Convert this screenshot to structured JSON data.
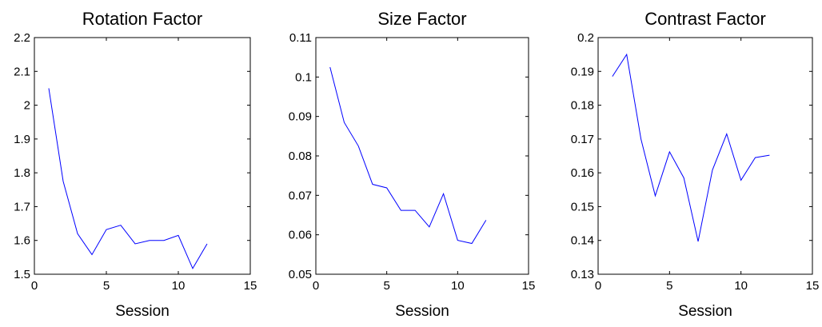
{
  "chart_data": [
    {
      "type": "line",
      "title": "Rotation Factor",
      "xlabel": "Session",
      "ylabel": "",
      "xlim": [
        0,
        15
      ],
      "ylim": [
        1.5,
        2.2
      ],
      "xticks": [
        0,
        5,
        10,
        15
      ],
      "xtick_labels": [
        "0",
        "5",
        "10",
        "15"
      ],
      "yticks": [
        1.5,
        1.6,
        1.7,
        1.8,
        1.9,
        2.0,
        2.1,
        2.2
      ],
      "ytick_labels": [
        "1.5",
        "1.6",
        "1.7",
        "1.8",
        "1.9",
        "2",
        "2.1",
        "2.2"
      ],
      "grid": false,
      "color": "#0000ff",
      "x": [
        1,
        2,
        3,
        4,
        5,
        6,
        7,
        8,
        9,
        10,
        11,
        12
      ],
      "y": [
        2.05,
        1.775,
        1.62,
        1.558,
        1.632,
        1.645,
        1.59,
        1.6,
        1.6,
        1.615,
        1.517,
        1.59
      ]
    },
    {
      "type": "line",
      "title": "Size Factor",
      "xlabel": "Session",
      "ylabel": "",
      "xlim": [
        0,
        15
      ],
      "ylim": [
        0.05,
        0.11
      ],
      "xticks": [
        0,
        5,
        10,
        15
      ],
      "xtick_labels": [
        "0",
        "5",
        "10",
        "15"
      ],
      "yticks": [
        0.05,
        0.06,
        0.07,
        0.08,
        0.09,
        0.1,
        0.11
      ],
      "ytick_labels": [
        "0.05",
        "0.06",
        "0.07",
        "0.08",
        "0.09",
        "0.1",
        "0.11"
      ],
      "grid": false,
      "color": "#0000ff",
      "x": [
        1,
        2,
        3,
        4,
        5,
        6,
        7,
        8,
        9,
        10,
        11,
        12
      ],
      "y": [
        0.1025,
        0.0885,
        0.0825,
        0.0728,
        0.0719,
        0.0662,
        0.0662,
        0.062,
        0.0704,
        0.0586,
        0.0578,
        0.0637
      ]
    },
    {
      "type": "line",
      "title": "Contrast Factor",
      "xlabel": "Session",
      "ylabel": "",
      "xlim": [
        0,
        15
      ],
      "ylim": [
        0.13,
        0.2
      ],
      "xticks": [
        0,
        5,
        10,
        15
      ],
      "xtick_labels": [
        "0",
        "5",
        "10",
        "15"
      ],
      "yticks": [
        0.13,
        0.14,
        0.15,
        0.16,
        0.17,
        0.18,
        0.19,
        0.2
      ],
      "ytick_labels": [
        "0.13",
        "0.14",
        "0.15",
        "0.16",
        "0.17",
        "0.18",
        "0.19",
        "0.2"
      ],
      "grid": false,
      "color": "#0000ff",
      "x": [
        1,
        2,
        3,
        4,
        5,
        6,
        7,
        8,
        9,
        10,
        11,
        12
      ],
      "y": [
        0.1885,
        0.195,
        0.17,
        0.1532,
        0.1662,
        0.1585,
        0.1397,
        0.1608,
        0.1715,
        0.1578,
        0.1645,
        0.1652
      ]
    }
  ]
}
